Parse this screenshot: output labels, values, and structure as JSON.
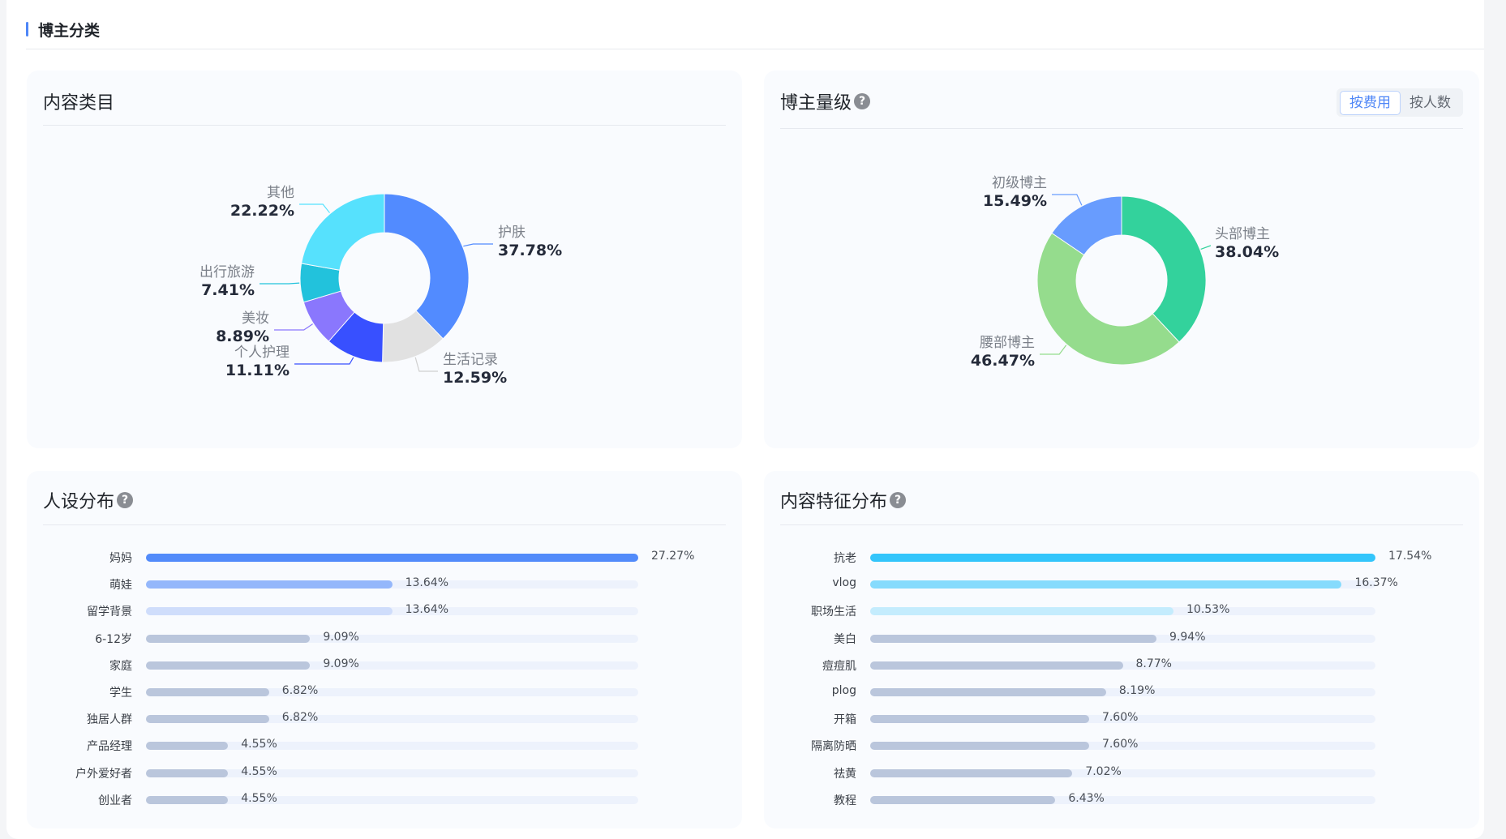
{
  "section": {
    "title": "博主分类"
  },
  "cards": {
    "content_category": {
      "title": "内容类目"
    },
    "blogger_tier": {
      "title": "博主量级",
      "help_icon": "question-circle-icon",
      "toggle": {
        "options": [
          "按费用",
          "按人数"
        ],
        "selected": "按费用"
      }
    },
    "persona": {
      "title": "人设分布",
      "help_icon": "question-circle-icon"
    },
    "content_features": {
      "title": "内容特征分布",
      "help_icon": "question-circle-icon"
    }
  },
  "colors": {
    "accent": "#4e86f7"
  },
  "chart_data": [
    {
      "id": "content_category",
      "type": "pie",
      "donut": true,
      "title": "内容类目",
      "slices": [
        {
          "label": "护肤",
          "value": 37.78,
          "display": "37.78%",
          "color": "#528bff"
        },
        {
          "label": "生活记录",
          "value": 12.59,
          "display": "12.59%",
          "color": "#e1e1e1"
        },
        {
          "label": "个人护理",
          "value": 11.11,
          "display": "11.11%",
          "color": "#3850ff"
        },
        {
          "label": "美妆",
          "value": 8.89,
          "display": "8.89%",
          "color": "#8a77fd"
        },
        {
          "label": "出行旅游",
          "value": 7.41,
          "display": "7.41%",
          "color": "#22c2dc"
        },
        {
          "label": "其他",
          "value": 22.22,
          "display": "22.22%",
          "color": "#56e1fd"
        }
      ]
    },
    {
      "id": "blogger_tier",
      "type": "pie",
      "donut": true,
      "title": "博主量级",
      "slices": [
        {
          "label": "头部博主",
          "value": 38.04,
          "display": "38.04%",
          "color": "#33d29c"
        },
        {
          "label": "腰部博主",
          "value": 46.47,
          "display": "46.47%",
          "color": "#95dc8d"
        },
        {
          "label": "初级博主",
          "value": 15.49,
          "display": "15.49%",
          "color": "#689cfe"
        }
      ]
    },
    {
      "id": "persona",
      "type": "bar",
      "orientation": "horizontal",
      "title": "人设分布",
      "categories": [
        "妈妈",
        "萌娃",
        "留学背景",
        "6-12岁",
        "家庭",
        "学生",
        "独居人群",
        "产品经理",
        "户外爱好者",
        "创业者"
      ],
      "values": [
        27.27,
        13.64,
        13.64,
        9.09,
        9.09,
        6.82,
        6.82,
        4.55,
        4.55,
        4.55
      ],
      "labels": [
        "27.27%",
        "13.64%",
        "13.64%",
        "9.09%",
        "9.09%",
        "6.82%",
        "6.82%",
        "4.55%",
        "4.55%",
        "4.55%"
      ],
      "colors": [
        "#528bfa",
        "#94b7fb",
        "#cfddfb",
        "#bac6dc",
        "#bac6dc",
        "#bac6dc",
        "#bac6dc",
        "#bac6dc",
        "#bac6dc",
        "#bac6dc"
      ],
      "max": 27.27
    },
    {
      "id": "content_features",
      "type": "bar",
      "orientation": "horizontal",
      "title": "内容特征分布",
      "categories": [
        "抗老",
        "vlog",
        "职场生活",
        "美白",
        "痘痘肌",
        "plog",
        "开箱",
        "隔离防晒",
        "祛黄",
        "教程"
      ],
      "values": [
        17.54,
        16.37,
        10.53,
        9.94,
        8.77,
        8.19,
        7.6,
        7.6,
        7.02,
        6.43
      ],
      "labels": [
        "17.54%",
        "16.37%",
        "10.53%",
        "9.94%",
        "8.77%",
        "8.19%",
        "7.60%",
        "7.60%",
        "7.02%",
        "6.43%"
      ],
      "colors": [
        "#33c5fb",
        "#86dbfd",
        "#c4ecfd",
        "#bac6dc",
        "#bac6dc",
        "#bac6dc",
        "#bac6dc",
        "#bac6dc",
        "#bac6dc",
        "#bac6dc"
      ],
      "max": 17.54
    }
  ]
}
